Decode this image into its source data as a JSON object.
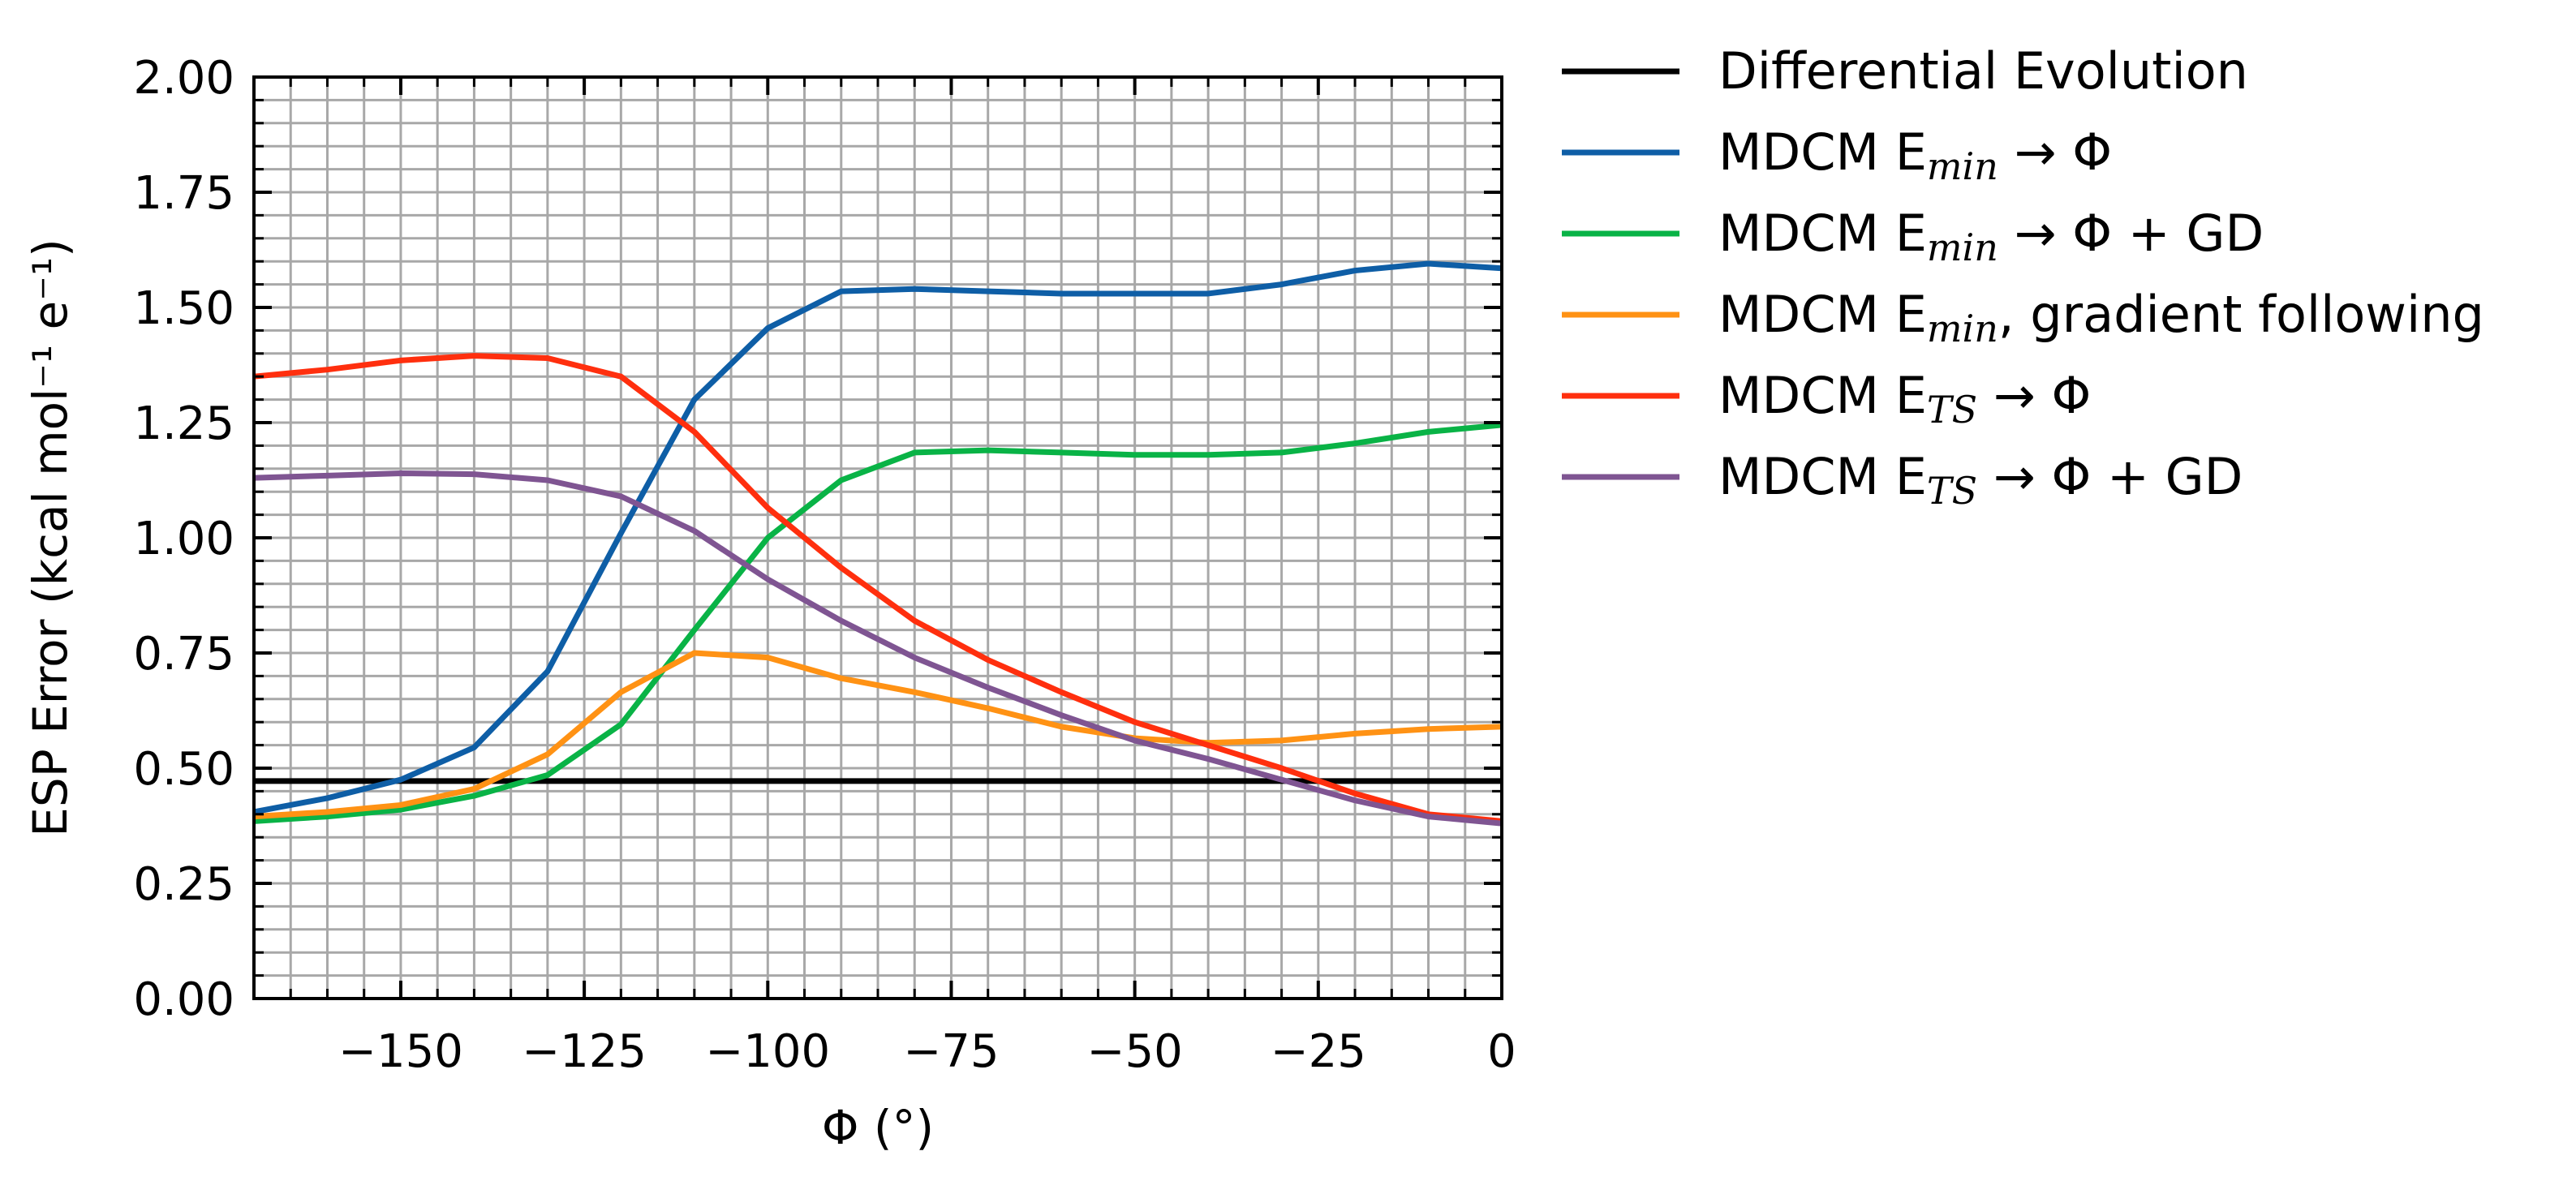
{
  "chart_data": {
    "type": "line",
    "title": "",
    "xlabel": "Φ (°)",
    "ylabel": "ESP Error (kcal mol⁻¹ e⁻¹)",
    "xlim": [
      -170,
      0
    ],
    "ylim": [
      0,
      2.0
    ],
    "x_ticks": [
      -150,
      -125,
      -100,
      -75,
      -50,
      -25,
      0
    ],
    "x_tick_labels": [
      "−150",
      "−125",
      "−100",
      "−75",
      "−50",
      "−25",
      "0"
    ],
    "y_ticks": [
      0,
      0.25,
      0.5,
      0.75,
      1.0,
      1.25,
      1.5,
      1.75,
      2.0
    ],
    "y_tick_labels": [
      "0.00",
      "0.25",
      "0.50",
      "0.75",
      "1.00",
      "1.25",
      "1.50",
      "1.75",
      "2.00"
    ],
    "grid": true,
    "legend_position": "outside-top-right",
    "x": [
      -170,
      -160,
      -150,
      -140,
      -130,
      -120,
      -110,
      -100,
      -90,
      -80,
      -70,
      -60,
      -50,
      -40,
      -30,
      -20,
      -10,
      0
    ],
    "series": [
      {
        "name": "Differential Evolution",
        "legend_prefix": "Differential Evolution",
        "legend_sub": "",
        "legend_suffix": "",
        "color": "#000000",
        "values": [
          0.472,
          0.472,
          0.472,
          0.472,
          0.472,
          0.472,
          0.472,
          0.472,
          0.472,
          0.472,
          0.472,
          0.472,
          0.472,
          0.472,
          0.472,
          0.472,
          0.472,
          0.472
        ]
      },
      {
        "name": "MDCM Emin → Φ",
        "legend_prefix": "MDCM E",
        "legend_sub": "min",
        "legend_suffix": " → Φ",
        "color": "#0e5ea6",
        "values": [
          0.405,
          0.435,
          0.475,
          0.545,
          0.71,
          1.01,
          1.3,
          1.455,
          1.535,
          1.54,
          1.535,
          1.53,
          1.53,
          1.53,
          1.55,
          1.58,
          1.595,
          1.585
        ]
      },
      {
        "name": "MDCM Emin → Φ + GD",
        "legend_prefix": "MDCM E",
        "legend_sub": "min",
        "legend_suffix": " → Φ + GD",
        "color": "#09b346",
        "values": [
          0.385,
          0.395,
          0.41,
          0.44,
          0.485,
          0.595,
          0.8,
          1.0,
          1.125,
          1.185,
          1.19,
          1.185,
          1.18,
          1.18,
          1.185,
          1.205,
          1.23,
          1.245
        ]
      },
      {
        "name": "MDCM Emin, gradient following",
        "legend_prefix": "MDCM E",
        "legend_sub": "min",
        "legend_suffix": ", gradient following",
        "color": "#ff9214",
        "values": [
          0.395,
          0.405,
          0.42,
          0.455,
          0.53,
          0.665,
          0.75,
          0.74,
          0.695,
          0.665,
          0.63,
          0.59,
          0.565,
          0.555,
          0.56,
          0.575,
          0.585,
          0.59
        ]
      },
      {
        "name": "MDCM ETS → Φ",
        "legend_prefix": "MDCM E",
        "legend_sub": "TS",
        "legend_suffix": " → Φ",
        "color": "#ff2f0e",
        "values": [
          1.35,
          1.365,
          1.385,
          1.395,
          1.39,
          1.35,
          1.23,
          1.065,
          0.935,
          0.82,
          0.735,
          0.665,
          0.6,
          0.55,
          0.5,
          0.445,
          0.4,
          0.385
        ]
      },
      {
        "name": "MDCM ETS → Φ + GD",
        "legend_prefix": "MDCM E",
        "legend_sub": "TS",
        "legend_suffix": " → Φ + GD",
        "color": "#7f5592",
        "values": [
          1.13,
          1.135,
          1.14,
          1.138,
          1.125,
          1.09,
          1.015,
          0.91,
          0.82,
          0.74,
          0.675,
          0.615,
          0.56,
          0.52,
          0.475,
          0.43,
          0.395,
          0.38
        ]
      }
    ]
  }
}
